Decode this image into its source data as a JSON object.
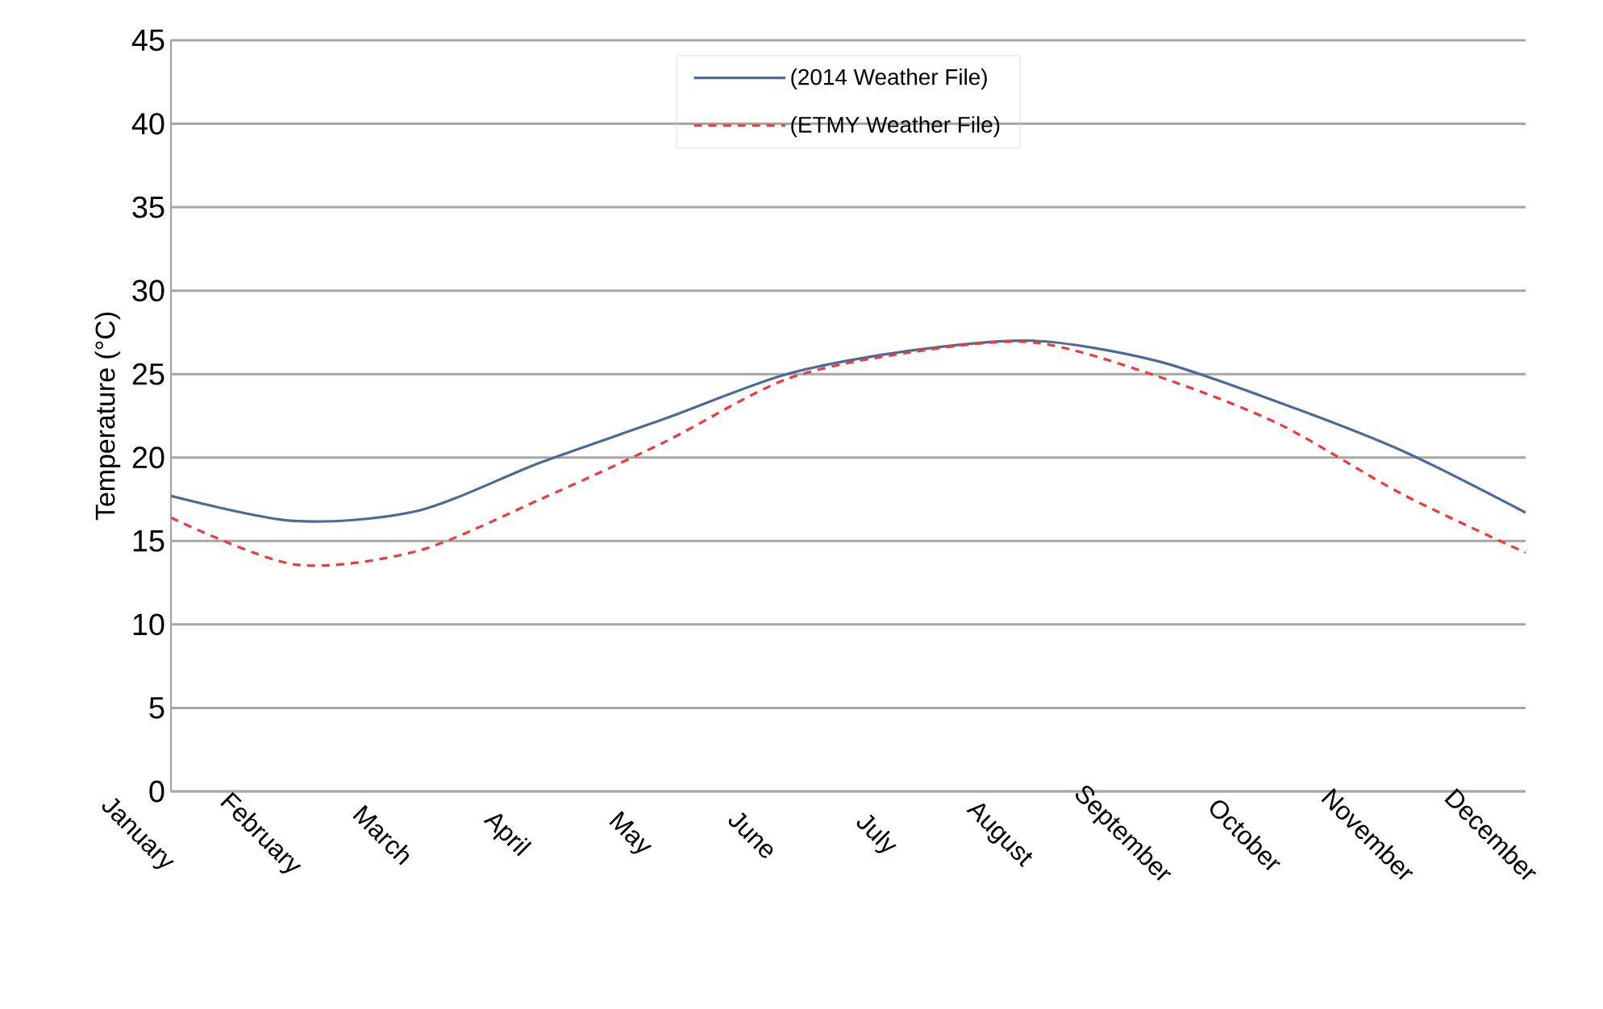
{
  "chart_data": {
    "type": "line",
    "ylabel": "Temperature (°C)",
    "categories": [
      "January",
      "February",
      "March",
      "April",
      "May",
      "June",
      "July",
      "August",
      "September",
      "October",
      "November",
      "December"
    ],
    "series": [
      {
        "name": "(2014 Weather File)",
        "color": "#4a6a9a",
        "line_style": "solid",
        "values": [
          17.7,
          16.2,
          16.8,
          19.7,
          22.3,
          25.0,
          26.4,
          27.0,
          25.8,
          23.3,
          20.4,
          16.7
        ]
      },
      {
        "name": "(ETMY Weather File)",
        "color": "#f03a3a",
        "line_style": "dashed",
        "values": [
          16.4,
          13.6,
          14.4,
          17.5,
          20.9,
          24.7,
          26.3,
          26.9,
          24.9,
          22.0,
          17.8,
          14.3
        ]
      }
    ],
    "ylim": [
      0,
      45
    ],
    "yticks": [
      0,
      5,
      10,
      15,
      20,
      25,
      30,
      35,
      40,
      45
    ],
    "grid": "y",
    "legend": "top",
    "marker": "none"
  }
}
